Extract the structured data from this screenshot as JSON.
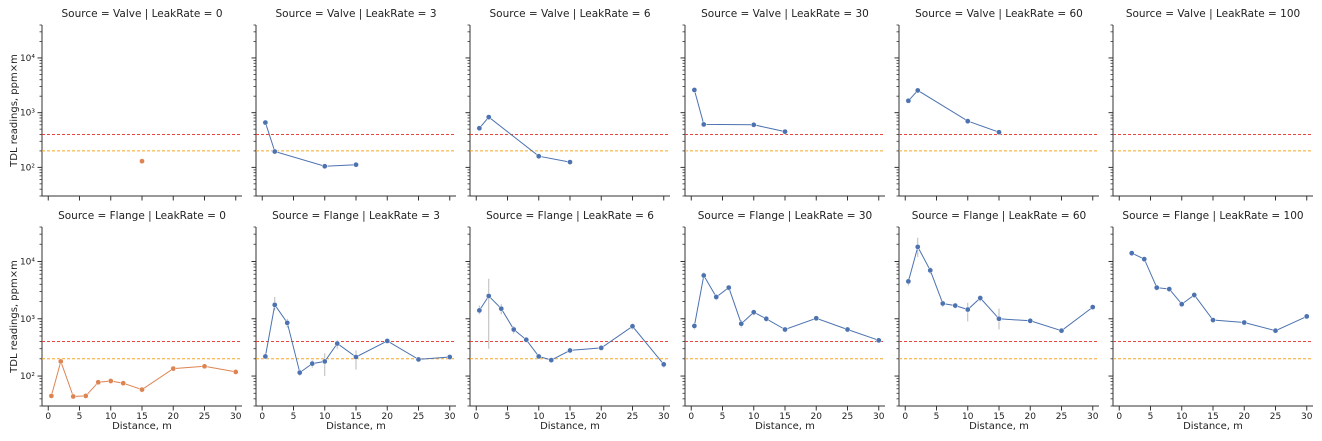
{
  "chart_data": {
    "type": "line",
    "layout": {
      "rows": 2,
      "cols": 6
    },
    "xlabel": "Distance, m",
    "ylabel": "TDL readings, ppm×m",
    "yscale": "log",
    "ylim": [
      30,
      40000
    ],
    "xlim": [
      -1,
      31
    ],
    "x_ticks": [
      0,
      5,
      10,
      15,
      20,
      25,
      30
    ],
    "x_tick_labels": [
      "0",
      "5",
      "10",
      "15",
      "20",
      "25",
      "30"
    ],
    "y_ticks": [
      100,
      1000,
      10000
    ],
    "y_tick_labels": [
      "10²",
      "10³",
      "10⁴"
    ],
    "reference_lines": [
      {
        "y": 400,
        "color": "#e8443a"
      },
      {
        "y": 200,
        "color": "#f5a623"
      }
    ],
    "colors": {
      "zero_leak": "#dd8452",
      "leak": "#4c72b0"
    },
    "panels": [
      {
        "row": 0,
        "col": 0,
        "title": "Source = Valve | LeakRate = 0",
        "color": "#dd8452",
        "x": [
          15
        ],
        "y": [
          130
        ],
        "ci": []
      },
      {
        "row": 0,
        "col": 1,
        "title": "Source = Valve | LeakRate = 3",
        "color": "#4c72b0",
        "x": [
          0.5,
          2,
          10,
          15
        ],
        "y": [
          660,
          195,
          105,
          112
        ],
        "ci": []
      },
      {
        "row": 0,
        "col": 2,
        "title": "Source = Valve | LeakRate = 6",
        "color": "#4c72b0",
        "x": [
          0.5,
          2,
          10,
          15
        ],
        "y": [
          520,
          830,
          160,
          125
        ],
        "ci": []
      },
      {
        "row": 0,
        "col": 3,
        "title": "Source = Valve | LeakRate = 30",
        "color": "#4c72b0",
        "x": [
          0.5,
          2,
          10,
          15
        ],
        "y": [
          2600,
          610,
          600,
          450
        ],
        "ci": []
      },
      {
        "row": 0,
        "col": 4,
        "title": "Source = Valve | LeakRate = 60",
        "color": "#4c72b0",
        "x": [
          0.5,
          2,
          10,
          15
        ],
        "y": [
          1650,
          2550,
          700,
          440
        ],
        "ci": []
      },
      {
        "row": 0,
        "col": 5,
        "title": "Source = Valve | LeakRate = 100",
        "color": "#4c72b0",
        "x": [],
        "y": [],
        "ci": []
      },
      {
        "row": 1,
        "col": 0,
        "title": "Source = Flange | LeakRate = 0",
        "color": "#dd8452",
        "x": [
          0.5,
          2,
          4,
          6,
          8,
          10,
          12,
          15,
          20,
          25,
          30
        ],
        "y": [
          45,
          180,
          44,
          45,
          78,
          82,
          75,
          58,
          135,
          148,
          118
        ],
        "ci": []
      },
      {
        "row": 1,
        "col": 1,
        "title": "Source = Flange | LeakRate = 3",
        "color": "#4c72b0",
        "x": [
          0.5,
          2,
          4,
          6,
          8,
          10,
          12,
          15,
          20,
          25,
          30
        ],
        "y": [
          220,
          1750,
          850,
          115,
          165,
          180,
          370,
          215,
          410,
          195,
          215
        ],
        "ci": [
          [
            200,
            250
          ],
          [
            1400,
            2400
          ],
          [
            700,
            1000
          ],
          [
            100,
            130
          ],
          [
            140,
            190
          ],
          [
            100,
            250
          ],
          [
            300,
            430
          ],
          [
            130,
            280
          ],
          [
            380,
            440
          ],
          [
            180,
            210
          ],
          [
            200,
            230
          ]
        ]
      },
      {
        "row": 1,
        "col": 2,
        "title": "Source = Flange | LeakRate = 6",
        "color": "#4c72b0",
        "x": [
          0.5,
          2,
          4,
          6,
          8,
          10,
          12,
          15,
          20,
          25,
          30
        ],
        "y": [
          1400,
          2500,
          1500,
          650,
          430,
          220,
          190,
          280,
          310,
          740,
          160
        ],
        "ci": [
          [
            1200,
            1700
          ],
          [
            300,
            5000
          ],
          [
            1200,
            1800
          ],
          [
            550,
            750
          ],
          [
            380,
            480
          ],
          [
            200,
            240
          ],
          [
            170,
            210
          ],
          [
            250,
            310
          ],
          [
            280,
            340
          ],
          [
            650,
            840
          ],
          [
            140,
            180
          ]
        ]
      },
      {
        "row": 1,
        "col": 3,
        "title": "Source = Flange | LeakRate = 30",
        "color": "#4c72b0",
        "x": [
          0.5,
          2,
          4,
          6,
          8,
          10,
          12,
          15,
          20,
          25,
          30
        ],
        "y": [
          750,
          5700,
          2400,
          3500,
          820,
          1300,
          1000,
          650,
          1020,
          650,
          420
        ],
        "ci": [
          [
            650,
            850
          ],
          [
            5000,
            6500
          ],
          [
            2100,
            2700
          ],
          [
            3100,
            3900
          ],
          [
            700,
            950
          ],
          [
            1150,
            1450
          ],
          [
            880,
            1120
          ],
          [
            580,
            720
          ],
          [
            920,
            1120
          ],
          [
            590,
            710
          ],
          [
            380,
            460
          ]
        ]
      },
      {
        "row": 1,
        "col": 4,
        "title": "Source = Flange | LeakRate = 60",
        "color": "#4c72b0",
        "x": [
          0.5,
          2,
          4,
          6,
          8,
          10,
          12,
          15,
          20,
          25,
          30
        ],
        "y": [
          4500,
          18000,
          7000,
          1850,
          1700,
          1450,
          2300,
          1000,
          920,
          620,
          1600
        ],
        "ci": [
          [
            3800,
            5200
          ],
          [
            12000,
            26000
          ],
          [
            6000,
            8000
          ],
          [
            1600,
            2100
          ],
          [
            1500,
            1900
          ],
          [
            900,
            1900
          ],
          [
            2000,
            2600
          ],
          [
            650,
            1500
          ],
          [
            850,
            1000
          ],
          [
            560,
            680
          ],
          [
            1450,
            1750
          ]
        ]
      },
      {
        "row": 1,
        "col": 5,
        "title": "Source = Flange | LeakRate = 100",
        "color": "#4c72b0",
        "x": [
          2,
          4,
          6,
          8,
          10,
          12,
          15,
          20,
          25,
          30
        ],
        "y": [
          14000,
          11000,
          3500,
          3300,
          1800,
          2600,
          950,
          860,
          620,
          1100
        ],
        "ci": [
          [
            12500,
            15500
          ],
          [
            9800,
            12200
          ],
          [
            3100,
            3900
          ],
          [
            3000,
            3600
          ],
          [
            1600,
            2000
          ],
          [
            2300,
            2900
          ],
          [
            850,
            1050
          ],
          [
            780,
            940
          ],
          [
            560,
            680
          ],
          [
            1000,
            1200
          ]
        ]
      }
    ]
  }
}
